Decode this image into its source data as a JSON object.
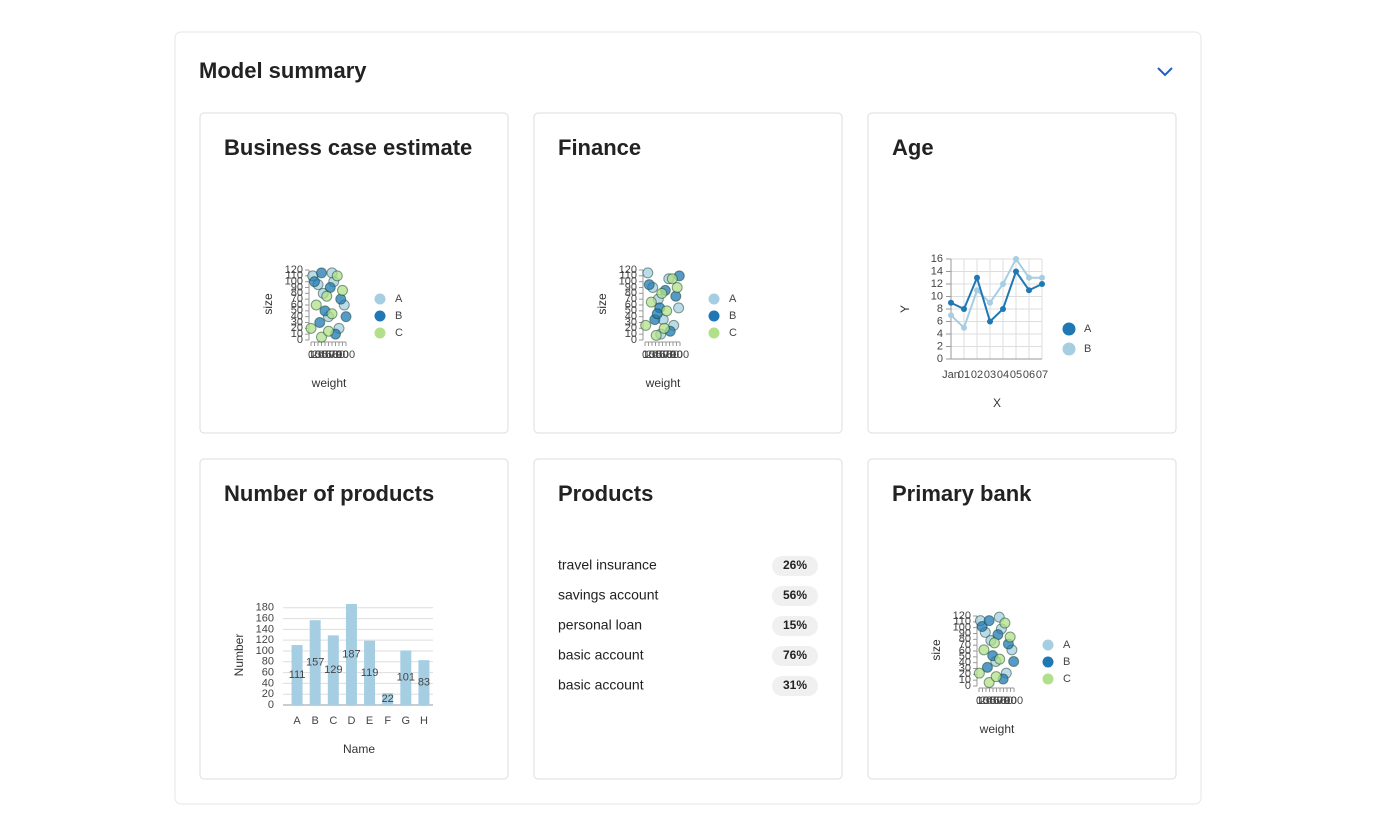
{
  "header": {
    "title": "Model summary"
  },
  "cards": [
    {
      "title": "Business case estimate",
      "chart_data": {
        "type": "scatter",
        "x_label": "weight",
        "y_label": "size",
        "xlim": [
          0,
          100
        ],
        "xticks": [
          0,
          10,
          20,
          30,
          40,
          50,
          60,
          70,
          80,
          90,
          100
        ],
        "ylim": [
          0,
          120
        ],
        "yticks": [
          0,
          10,
          20,
          30,
          40,
          50,
          60,
          70,
          80,
          90,
          100,
          110,
          120
        ],
        "series": [
          {
            "name": "A",
            "color": "#a6cee3",
            "x": [
              5,
              20,
              35,
              50,
              65,
              80,
              95,
              60
            ],
            "values": [
              110,
              95,
              80,
              40,
              100,
              20,
              60,
              115
            ]
          },
          {
            "name": "B",
            "color": "#1f78b4",
            "x": [
              10,
              25,
              40,
              55,
              70,
              85,
              100,
              30
            ],
            "values": [
              100,
              30,
              50,
              90,
              10,
              70,
              40,
              115
            ]
          },
          {
            "name": "C",
            "color": "#b2df8a",
            "x": [
              0,
              15,
              30,
              45,
              60,
              75,
              90,
              50
            ],
            "values": [
              20,
              60,
              5,
              75,
              45,
              110,
              85,
              15
            ]
          }
        ]
      }
    },
    {
      "title": "Finance",
      "chart_data": {
        "type": "scatter",
        "x_label": "weight",
        "y_label": "size",
        "xlim": [
          0,
          100
        ],
        "xticks": [
          0,
          10,
          20,
          30,
          40,
          50,
          60,
          70,
          80,
          90,
          100
        ],
        "ylim": [
          0,
          120
        ],
        "yticks": [
          0,
          10,
          20,
          30,
          40,
          50,
          60,
          70,
          80,
          90,
          100,
          110,
          120
        ],
        "series": [
          {
            "name": "A",
            "color": "#a6cee3",
            "x": [
              8,
              22,
              38,
              52,
              68,
              82,
              96,
              45
            ],
            "values": [
              115,
              90,
              70,
              35,
              105,
              25,
              55,
              10
            ]
          },
          {
            "name": "B",
            "color": "#1f78b4",
            "x": [
              12,
              28,
              42,
              58,
              72,
              88,
              98,
              35
            ],
            "values": [
              95,
              35,
              55,
              85,
              15,
              75,
              110,
              45
            ]
          },
          {
            "name": "C",
            "color": "#b2df8a",
            "x": [
              2,
              18,
              32,
              48,
              62,
              78,
              92,
              55
            ],
            "values": [
              25,
              65,
              8,
              80,
              50,
              105,
              90,
              20
            ]
          }
        ]
      }
    },
    {
      "title": "Age",
      "chart_data": {
        "type": "line",
        "x_label": "X",
        "y_label": "Y",
        "grid": true,
        "categories": [
          "Jan",
          "01",
          "02",
          "03",
          "04",
          "05",
          "06",
          "07"
        ],
        "ylim": [
          0,
          16
        ],
        "yticks": [
          0,
          2,
          4,
          6,
          8,
          10,
          12,
          14,
          16
        ],
        "series": [
          {
            "name": "A",
            "color": "#1f78b4",
            "values": [
              9,
              8,
              13,
              6,
              8,
              14,
              11,
              12
            ]
          },
          {
            "name": "B",
            "color": "#a6cee3",
            "values": [
              7,
              5,
              11,
              9,
              12,
              16,
              13,
              13
            ]
          }
        ]
      }
    },
    {
      "title": "Number of products",
      "chart_data": {
        "type": "bar",
        "x_label": "Name",
        "y_label": "Number",
        "grid": true,
        "color": "#a6cee3",
        "categories": [
          "A",
          "B",
          "C",
          "D",
          "E",
          "F",
          "G",
          "H"
        ],
        "values": [
          111,
          157,
          129,
          187,
          119,
          22,
          101,
          83
        ],
        "ylim": [
          0,
          187
        ],
        "yticks": [
          0,
          20,
          40,
          60,
          80,
          100,
          120,
          140,
          160,
          180
        ]
      }
    },
    {
      "title": "Products",
      "items": [
        {
          "label": "travel insurance",
          "value": "26%"
        },
        {
          "label": "savings account",
          "value": "56%"
        },
        {
          "label": "personal loan",
          "value": "15%"
        },
        {
          "label": "basic account",
          "value": "76%"
        },
        {
          "label": "basic account",
          "value": "31%"
        }
      ]
    },
    {
      "title": "Primary bank",
      "chart_data": {
        "type": "scatter",
        "x_label": "weight",
        "y_label": "size",
        "xlim": [
          0,
          100
        ],
        "xticks": [
          0,
          10,
          20,
          30,
          40,
          50,
          60,
          70,
          80,
          90,
          100
        ],
        "ylim": [
          0,
          120
        ],
        "yticks": [
          0,
          10,
          20,
          30,
          40,
          50,
          60,
          70,
          80,
          90,
          100,
          110,
          120
        ],
        "series": [
          {
            "name": "A",
            "color": "#a6cee3",
            "x": [
              4,
              18,
              34,
              48,
              64,
              78,
              94,
              58
            ],
            "values": [
              112,
              92,
              78,
              42,
              98,
              22,
              62,
              118
            ]
          },
          {
            "name": "B",
            "color": "#1f78b4",
            "x": [
              9,
              24,
              39,
              54,
              69,
              84,
              99,
              29
            ],
            "values": [
              102,
              32,
              52,
              88,
              12,
              72,
              42,
              112
            ]
          },
          {
            "name": "C",
            "color": "#b2df8a",
            "x": [
              1,
              14,
              29,
              44,
              59,
              74,
              89,
              49
            ],
            "values": [
              22,
              62,
              6,
              74,
              46,
              108,
              84,
              16
            ]
          }
        ]
      }
    }
  ]
}
